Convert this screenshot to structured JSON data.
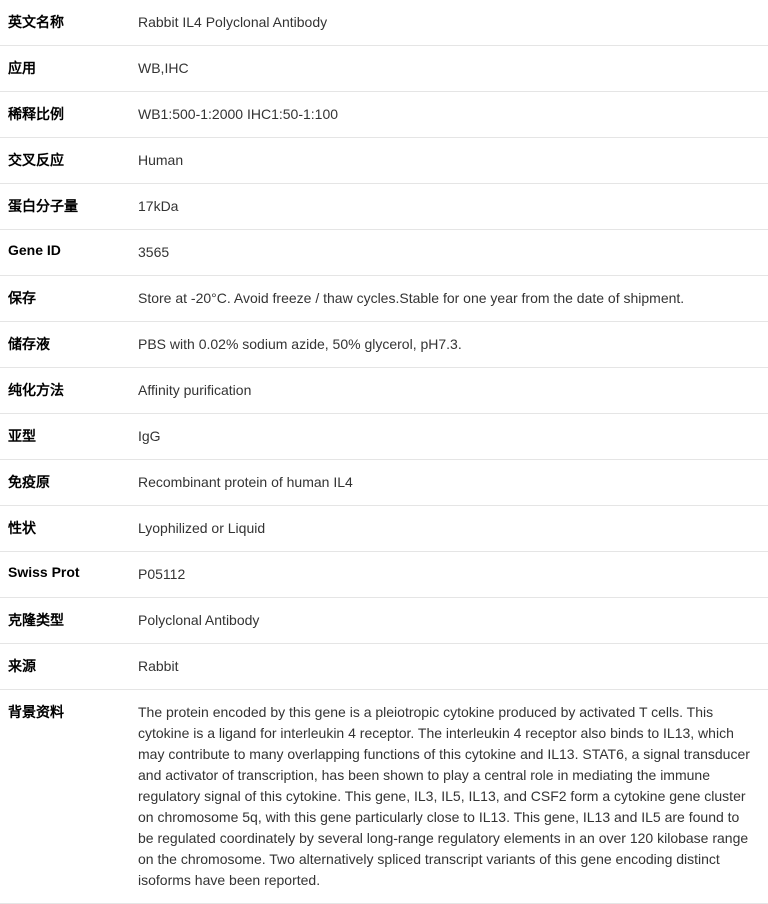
{
  "rows": [
    {
      "label": "英文名称",
      "value": "Rabbit IL4 Polyclonal Antibody"
    },
    {
      "label": "应用",
      "value": "WB,IHC"
    },
    {
      "label": "稀释比例",
      "value": "WB1:500-1:2000 IHC1:50-1:100"
    },
    {
      "label": "交叉反应",
      "value": "Human"
    },
    {
      "label": "蛋白分子量",
      "value": "17kDa"
    },
    {
      "label": "Gene ID",
      "value": "3565"
    },
    {
      "label": "保存",
      "value": "Store at -20°C. Avoid freeze / thaw cycles.Stable for one year from the date of shipment."
    },
    {
      "label": "储存液",
      "value": "PBS with 0.02% sodium azide, 50% glycerol, pH7.3."
    },
    {
      "label": "纯化方法",
      "value": "Affinity purification"
    },
    {
      "label": "亚型",
      "value": "IgG"
    },
    {
      "label": "免疫原",
      "value": "Recombinant protein of human IL4"
    },
    {
      "label": "性状",
      "value": "Lyophilized or Liquid"
    },
    {
      "label": "Swiss Prot",
      "value": "P05112"
    },
    {
      "label": "克隆类型",
      "value": "Polyclonal Antibody"
    },
    {
      "label": "来源",
      "value": "Rabbit"
    },
    {
      "label": "背景资料",
      "value": "The protein encoded by this gene is a pleiotropic cytokine produced by activated T cells. This cytokine is a ligand for interleukin 4 receptor. The interleukin 4 receptor also binds to IL13, which may contribute to many overlapping functions of this cytokine and IL13. STAT6, a signal transducer and activator of transcription, has been shown to play a central role in mediating the immune regulatory signal of this cytokine. This gene, IL3, IL5, IL13, and CSF2 form a cytokine gene cluster on chromosome 5q, with this gene particularly close to IL13. This gene, IL13 and IL5 are found to be regulated coordinately by several long-range regulatory elements in an over 120 kilobase range on the chromosome. Two alternatively spliced transcript variants of this gene encoding distinct isoforms have been reported."
    }
  ]
}
